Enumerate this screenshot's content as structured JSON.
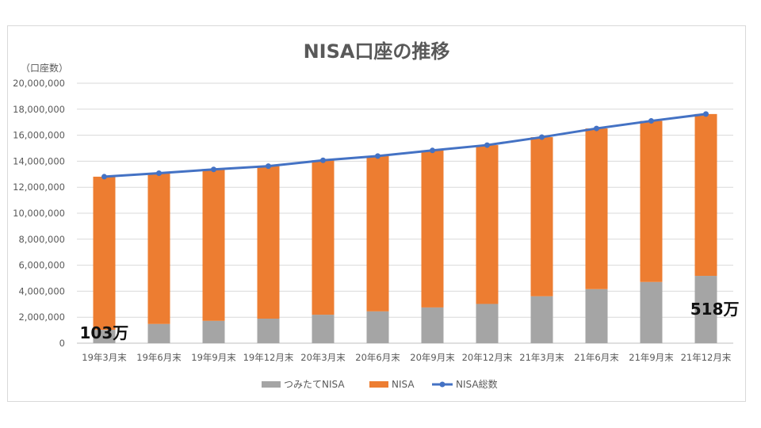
{
  "chart_data": {
    "type": "bar",
    "title": "NISA口座の推移",
    "ylabel": "（口座数）",
    "xlabel": "",
    "ylim": [
      0,
      20000000
    ],
    "y_ticks": [
      0,
      2000000,
      4000000,
      6000000,
      8000000,
      10000000,
      12000000,
      14000000,
      16000000,
      18000000,
      20000000
    ],
    "y_tick_labels": [
      "0",
      "2,000,000",
      "4,000,000",
      "6,000,000",
      "8,000,000",
      "10,000,000",
      "12,000,000",
      "14,000,000",
      "16,000,000",
      "18,000,000",
      "20,000,000"
    ],
    "grid": true,
    "legend_position": "bottom",
    "categories": [
      "19年3月末",
      "19年6月末",
      "19年9月末",
      "19年12月末",
      "20年3月末",
      "20年6月末",
      "20年9月末",
      "20年12月末",
      "21年3月末",
      "21年6月末",
      "21年9月末",
      "21年12月末"
    ],
    "series": [
      {
        "name": "つみたてNISA",
        "kind": "stacked-bar",
        "color": "#a5a5a5",
        "values": [
          1030000,
          1480000,
          1720000,
          1890000,
          2190000,
          2450000,
          2750000,
          3020000,
          3610000,
          4160000,
          4710000,
          5180000
        ]
      },
      {
        "name": "NISA",
        "kind": "stacked-bar",
        "color": "#ed7d31",
        "values": [
          11780000,
          11600000,
          11650000,
          11730000,
          11880000,
          11950000,
          12080000,
          12220000,
          12240000,
          12360000,
          12390000,
          12450000
        ]
      },
      {
        "name": "NISA総数",
        "kind": "line",
        "color": "#4472c4",
        "values": [
          12810000,
          13080000,
          13370000,
          13620000,
          14070000,
          14400000,
          14830000,
          15240000,
          15850000,
          16520000,
          17100000,
          17630000
        ]
      }
    ],
    "annotations": [
      {
        "text": "103万",
        "category_index": 0
      },
      {
        "text": "518万",
        "category_index": 11
      }
    ]
  }
}
